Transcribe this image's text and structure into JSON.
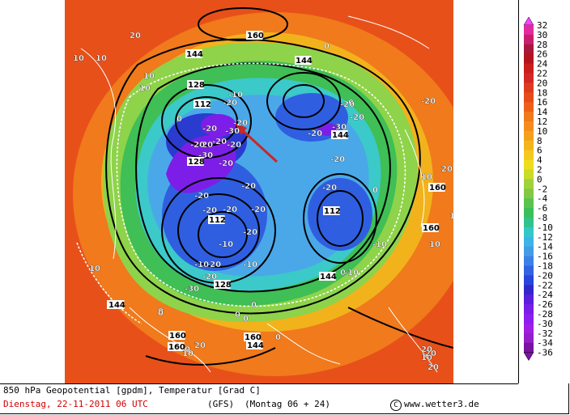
{
  "map": {
    "colors": {
      "warm_outer": "#e8501a",
      "orange": "#f07a1c",
      "yellow_orange": "#f2b21c",
      "light_green": "#8ed34a",
      "green": "#3fbf55",
      "cyan": "#3cc9c9",
      "light_blue": "#4aa8e8",
      "blue": "#2f5fe0",
      "dark_blue": "#2a3bd0",
      "purple": "#7d1ee8",
      "arrow": "#c82828"
    },
    "contour_labels": [
      "160",
      "10",
      "10",
      "144",
      "0",
      "144",
      "10",
      "10",
      "128",
      "112",
      "-10",
      "-20",
      "-20",
      "-30",
      "-20",
      "0",
      "-20",
      "-20",
      "-20",
      "144",
      "-20",
      "0",
      "-20",
      "-30",
      "-20",
      "-20",
      "-20",
      "-30",
      "-20",
      "128",
      "-20",
      "-20",
      "-20",
      "-20",
      "-20",
      "-20",
      "-20",
      "112",
      "-10",
      "-20",
      "-10",
      "112",
      "-20",
      "-30",
      "0",
      "-10",
      "0",
      "128",
      "-10",
      "-10",
      "144",
      "0",
      "144",
      "0",
      "0",
      "-10",
      "0",
      "-20",
      "0",
      "160",
      "160",
      "10",
      "20",
      "0",
      "160",
      "10",
      "20",
      "10",
      "10",
      "160",
      "0",
      "144",
      "10",
      "20",
      "20",
      "160",
      "10",
      "20",
      "144",
      "20"
    ]
  },
  "legend": {
    "values": [
      "32",
      "30",
      "28",
      "26",
      "24",
      "22",
      "20",
      "18",
      "16",
      "14",
      "12",
      "10",
      "8",
      "6",
      "4",
      "2",
      "0",
      "-2",
      "-4",
      "-6",
      "-8",
      "-10",
      "-12",
      "-14",
      "-16",
      "-18",
      "-20",
      "-22",
      "-24",
      "-26",
      "-28",
      "-30",
      "-32",
      "-34",
      "-36"
    ],
    "colors": [
      "#ff40ff",
      "#e02c9c",
      "#c81e6e",
      "#a8183c",
      "#b4141e",
      "#c81e1e",
      "#d22828",
      "#dc3c1e",
      "#e64b1a",
      "#ee5f18",
      "#f07a1c",
      "#f48c1c",
      "#f5a01c",
      "#f4b41e",
      "#f4c81e",
      "#f0dc1e",
      "#c8dc28",
      "#a0d23c",
      "#82c846",
      "#5ac350",
      "#3cbf5a",
      "#32c38c",
      "#32c8c8",
      "#3cb4e6",
      "#469be6",
      "#3c82e6",
      "#3264e1",
      "#2846dc",
      "#3228c8",
      "#5a1edc",
      "#781ee6",
      "#8c1ef0",
      "#a01ee6",
      "#961ec8",
      "#7814a0"
    ]
  },
  "footer": {
    "line1": "850 hPa Geopotential [gpdm], Temperatur [Grad C]",
    "line2_date": "Dienstag, 22-11-2011  06 UTC",
    "model": "(GFS)",
    "valid": "(Montag 06 + 24)",
    "credit": "www.wetter3.de"
  }
}
